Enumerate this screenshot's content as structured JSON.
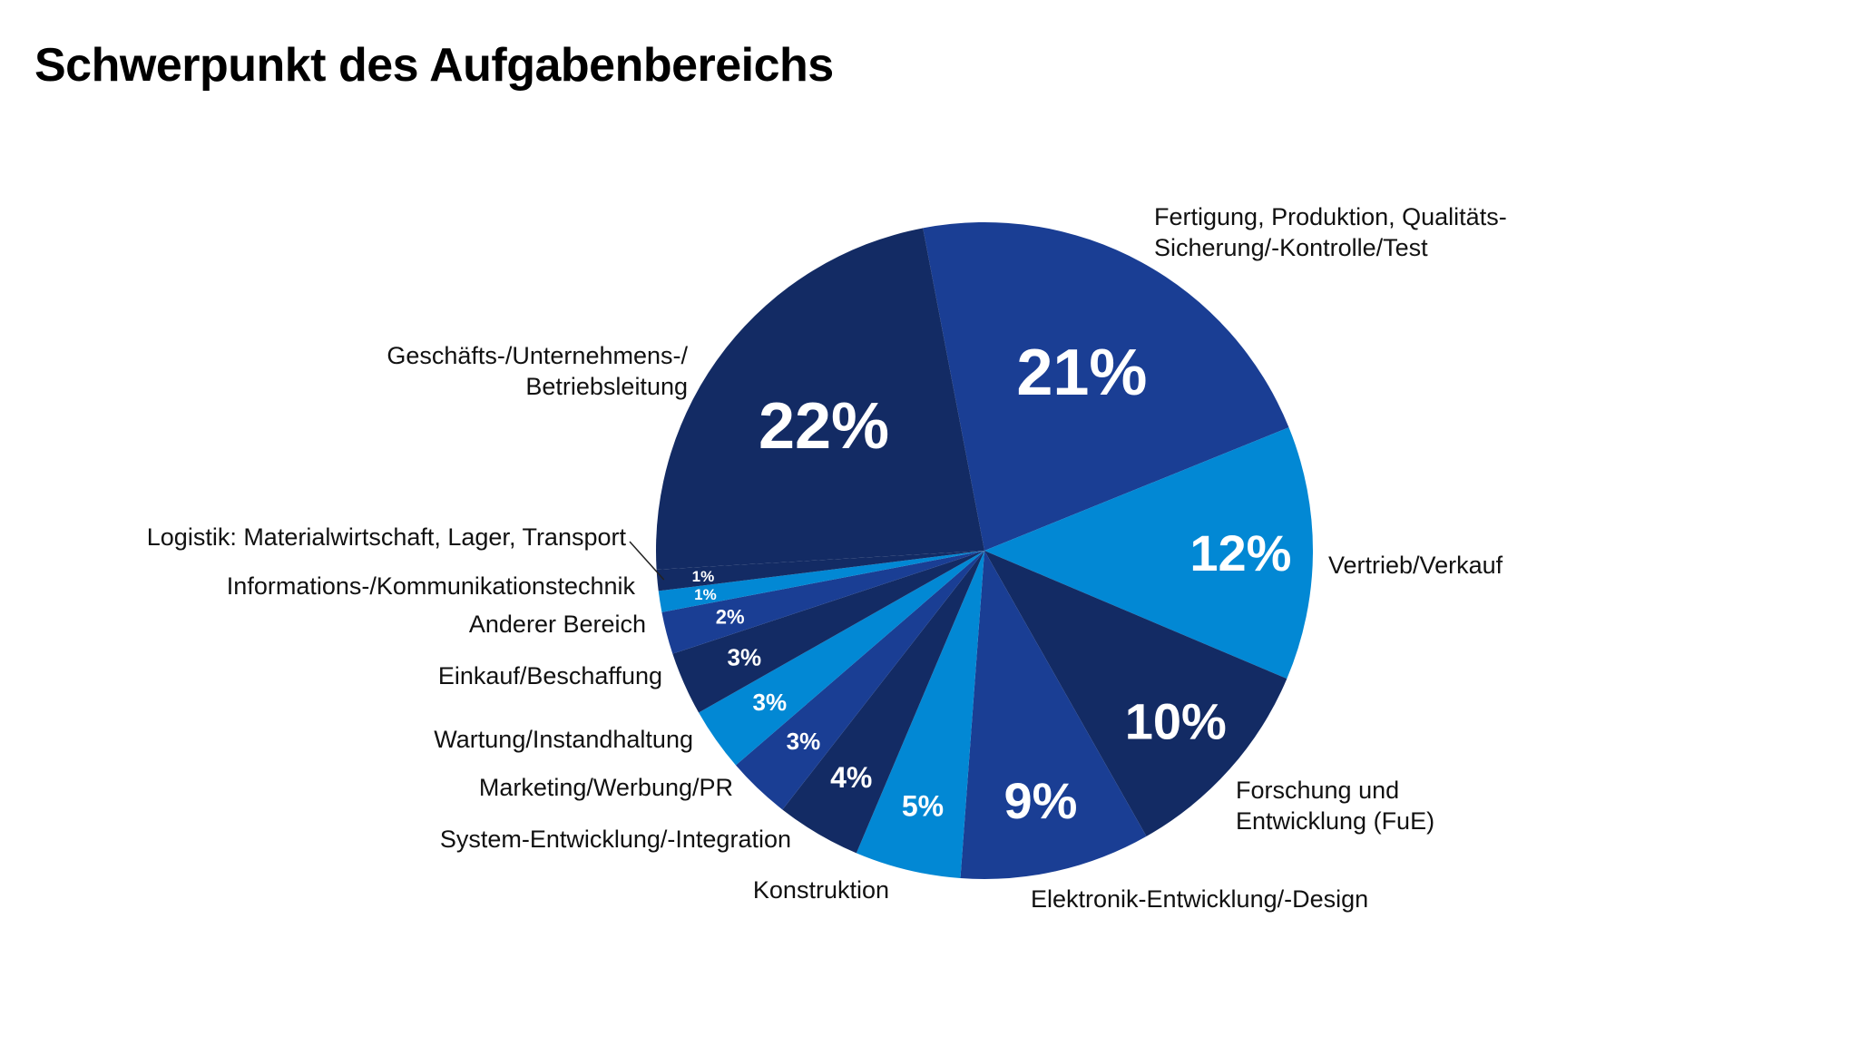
{
  "chart_data": {
    "type": "pie",
    "title": "Schwerpunkt des Aufgabenbereichs",
    "start": "top-slightly-left",
    "direction": "clockwise",
    "slices": [
      {
        "label": [
          "Fertigung, Produktion, Qualitäts-",
          "Sicherung/-Kontrolle/Test"
        ],
        "value": 21,
        "text": "21%",
        "color": "#1a3e94"
      },
      {
        "label": [
          "Vertrieb/Verkauf"
        ],
        "value": 12,
        "text": "12%",
        "color": "#0288d4"
      },
      {
        "label": [
          "Forschung und",
          "Entwicklung (FuE)"
        ],
        "value": 10,
        "text": "10%",
        "color": "#132b64"
      },
      {
        "label": [
          "Elektronik-Entwicklung/-Design"
        ],
        "value": 9,
        "text": "9%",
        "color": "#1a3e94"
      },
      {
        "label": [
          "Konstruktion"
        ],
        "value": 5,
        "text": "5%",
        "color": "#0288d4"
      },
      {
        "label": [
          "System-Entwicklung/-Integration"
        ],
        "value": 4,
        "text": "4%",
        "color": "#132b64"
      },
      {
        "label": [
          "Marketing/Werbung/PR"
        ],
        "value": 3,
        "text": "3%",
        "color": "#1a3e94"
      },
      {
        "label": [
          "Wartung/Instandhaltung"
        ],
        "value": 3,
        "text": "3%",
        "color": "#0288d4"
      },
      {
        "label": [
          "Einkauf/Beschaffung"
        ],
        "value": 3,
        "text": "3%",
        "color": "#132b64"
      },
      {
        "label": [
          "Anderer Bereich"
        ],
        "value": 2,
        "text": "2%",
        "color": "#1a3e94"
      },
      {
        "label": [
          "Informations-/Kommunikationstechnik"
        ],
        "value": 1,
        "text": "1%",
        "color": "#0288d4"
      },
      {
        "label": [
          "Logistik: Materialwirtschaft, Lager, Transport"
        ],
        "value": 1,
        "text": "1%",
        "color": "#132b64"
      },
      {
        "label": [
          "Geschäfts-/Unternehmens-/",
          "Betriebsleitung"
        ],
        "value": 22,
        "text": "22%",
        "color": "#132b64"
      }
    ]
  }
}
